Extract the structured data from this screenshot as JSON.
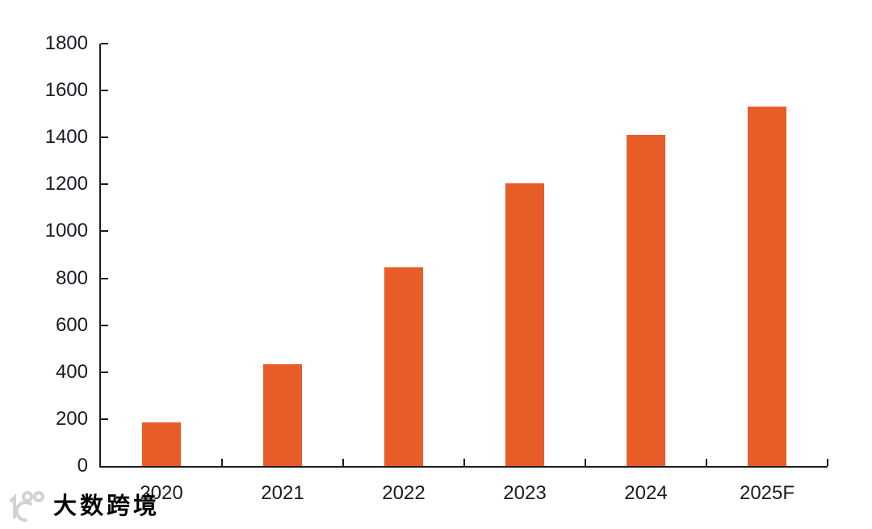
{
  "chart_data": {
    "type": "bar",
    "title": "",
    "xlabel": "",
    "ylabel": "",
    "categories": [
      "2020",
      "2021",
      "2022",
      "2023",
      "2024",
      "2025F"
    ],
    "values": [
      185,
      435,
      845,
      1205,
      1410,
      1530
    ],
    "ylim": [
      0,
      1800
    ],
    "ytick_step": 200,
    "yticks": [
      0,
      200,
      400,
      600,
      800,
      1000,
      1200,
      1400,
      1600,
      1800
    ],
    "grid": false,
    "legend": false,
    "bar_color": "#E85C27",
    "axis_color": "#1c1c1c",
    "label_color": "#1a1a24"
  },
  "watermark": {
    "logo": "100-logo",
    "text": "大数跨境",
    "color": "#d2d2d2"
  }
}
